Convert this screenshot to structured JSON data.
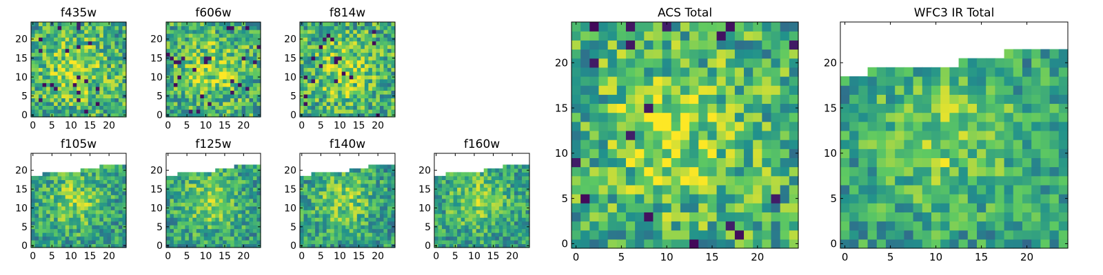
{
  "figure": {
    "colormap": [
      "#440154",
      "#3b528b",
      "#21918c",
      "#5ec962",
      "#fde725"
    ]
  },
  "chart_data": [
    {
      "type": "heatmap",
      "title": "f435w",
      "grid": false,
      "xlim": [
        -0.5,
        24.5
      ],
      "ylim": [
        -0.5,
        24.5
      ],
      "xticks": [
        0,
        5,
        10,
        15,
        20
      ],
      "yticks": [
        0,
        5,
        10,
        15,
        20
      ],
      "seed": 11,
      "coverage": "full"
    },
    {
      "type": "heatmap",
      "title": "f606w",
      "grid": false,
      "xlim": [
        -0.5,
        24.5
      ],
      "ylim": [
        -0.5,
        24.5
      ],
      "xticks": [
        0,
        5,
        10,
        15,
        20
      ],
      "yticks": [
        0,
        5,
        10,
        15,
        20
      ],
      "seed": 23,
      "coverage": "full"
    },
    {
      "type": "heatmap",
      "title": "f814w",
      "grid": false,
      "xlim": [
        -0.5,
        24.5
      ],
      "ylim": [
        -0.5,
        24.5
      ],
      "xticks": [
        0,
        5,
        10,
        15,
        20
      ],
      "yticks": [
        0,
        5,
        10,
        15,
        20
      ],
      "seed": 37,
      "coverage": "full"
    },
    {
      "type": "heatmap",
      "title": "f105w",
      "grid": false,
      "xlim": [
        -0.5,
        24.5
      ],
      "ylim": [
        -0.5,
        24.5
      ],
      "xticks": [
        0,
        5,
        10,
        15,
        20
      ],
      "yticks": [
        0,
        5,
        10,
        15,
        20
      ],
      "seed": 41,
      "coverage": "ir"
    },
    {
      "type": "heatmap",
      "title": "f125w",
      "grid": false,
      "xlim": [
        -0.5,
        24.5
      ],
      "ylim": [
        -0.5,
        24.5
      ],
      "xticks": [
        0,
        5,
        10,
        15,
        20
      ],
      "yticks": [
        0,
        5,
        10,
        15,
        20
      ],
      "seed": 53,
      "coverage": "ir"
    },
    {
      "type": "heatmap",
      "title": "f140w",
      "grid": false,
      "xlim": [
        -0.5,
        24.5
      ],
      "ylim": [
        -0.5,
        24.5
      ],
      "xticks": [
        0,
        5,
        10,
        15,
        20
      ],
      "yticks": [
        0,
        5,
        10,
        15,
        20
      ],
      "seed": 67,
      "coverage": "ir"
    },
    {
      "type": "heatmap",
      "title": "f160w",
      "grid": false,
      "xlim": [
        -0.5,
        24.5
      ],
      "ylim": [
        -0.5,
        24.5
      ],
      "xticks": [
        0,
        5,
        10,
        15,
        20
      ],
      "yticks": [
        0,
        5,
        10,
        15,
        20
      ],
      "seed": 79,
      "coverage": "ir"
    },
    {
      "type": "heatmap",
      "title": "ACS Total",
      "grid": false,
      "xlim": [
        -0.5,
        24.5
      ],
      "ylim": [
        -0.5,
        24.5
      ],
      "xticks": [
        0,
        5,
        10,
        15,
        20
      ],
      "yticks": [
        0,
        5,
        10,
        15,
        20
      ],
      "seed": 97,
      "coverage": "full"
    },
    {
      "type": "heatmap",
      "title": "WFC3 IR Total",
      "grid": false,
      "xlim": [
        -0.5,
        24.5
      ],
      "ylim": [
        -0.5,
        24.5
      ],
      "xticks": [
        0,
        5,
        10,
        15,
        20
      ],
      "yticks": [
        0,
        5,
        10,
        15,
        20
      ],
      "seed": 113,
      "coverage": "ir"
    }
  ]
}
